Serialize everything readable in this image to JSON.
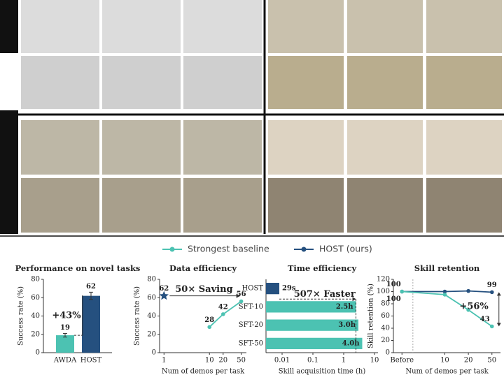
{
  "legend": [
    {
      "name": "Strongest baseline",
      "color": "#4cc2b2"
    },
    {
      "name": "HOST (ours)",
      "color": "#25507f"
    }
  ],
  "chart_data": [
    {
      "type": "bar",
      "title": "Performance on novel tasks",
      "ylabel": "Success rate (%)",
      "categories": [
        "AWDA",
        "HOST"
      ],
      "values": [
        19,
        62
      ],
      "errors": [
        2,
        4
      ],
      "colors": [
        "#4cc2b2",
        "#25507f"
      ],
      "ylim": [
        0,
        80
      ],
      "yticks": [
        0,
        20,
        40,
        60,
        80
      ],
      "annotation": "+43%"
    },
    {
      "type": "line",
      "title": "Data efficiency",
      "ylabel": "Success rate (%)",
      "xlabel": "Num of demos per task",
      "xscale": "log",
      "xlim": [
        0.8,
        65
      ],
      "xticks": [
        1,
        10,
        20,
        50
      ],
      "ylim": [
        0,
        80
      ],
      "yticks": [
        0,
        20,
        40,
        60,
        80
      ],
      "series": [
        {
          "name": "Strongest baseline",
          "color": "#4cc2b2",
          "x": [
            10,
            20,
            50
          ],
          "values": [
            28,
            42,
            56
          ],
          "marker": "circle"
        },
        {
          "name": "HOST (ours)",
          "color": "#25507f",
          "x": [
            1
          ],
          "values": [
            62
          ],
          "marker": "star"
        }
      ],
      "annotation": "50× Saving"
    },
    {
      "type": "barh",
      "title": "Time efficiency",
      "xlabel": "Skill acquisition time (h)",
      "xscale": "log",
      "xlim": [
        0.003,
        13
      ],
      "xticks": [
        0.01,
        0.1,
        1,
        10
      ],
      "categories": [
        "HOST",
        "SFT-10",
        "SFT-20",
        "SFT-50"
      ],
      "values": [
        0.0081,
        2.5,
        3.0,
        4.0
      ],
      "value_labels": [
        "29s",
        "2.5h",
        "3.0h",
        "4.0h"
      ],
      "colors": [
        "#25507f",
        "#4cc2b2",
        "#4cc2b2",
        "#4cc2b2"
      ],
      "annotation": "507× Faster"
    },
    {
      "type": "line",
      "title": "Skill retention",
      "ylabel": "Skill retention (%)",
      "xlabel": "Num of demos per task",
      "categories": [
        "Before",
        "10",
        "20",
        "50"
      ],
      "ylim": [
        0,
        120
      ],
      "yticks": [
        0,
        20,
        40,
        60,
        80,
        100,
        120
      ],
      "series": [
        {
          "name": "HOST (ours)",
          "color": "#25507f",
          "values": [
            100,
            100,
            101,
            99
          ],
          "marker": "circle"
        },
        {
          "name": "Strongest baseline",
          "color": "#4cc2b2",
          "values": [
            100,
            95,
            70,
            43
          ],
          "marker": "circle"
        }
      ],
      "annotation": "+56%"
    }
  ]
}
